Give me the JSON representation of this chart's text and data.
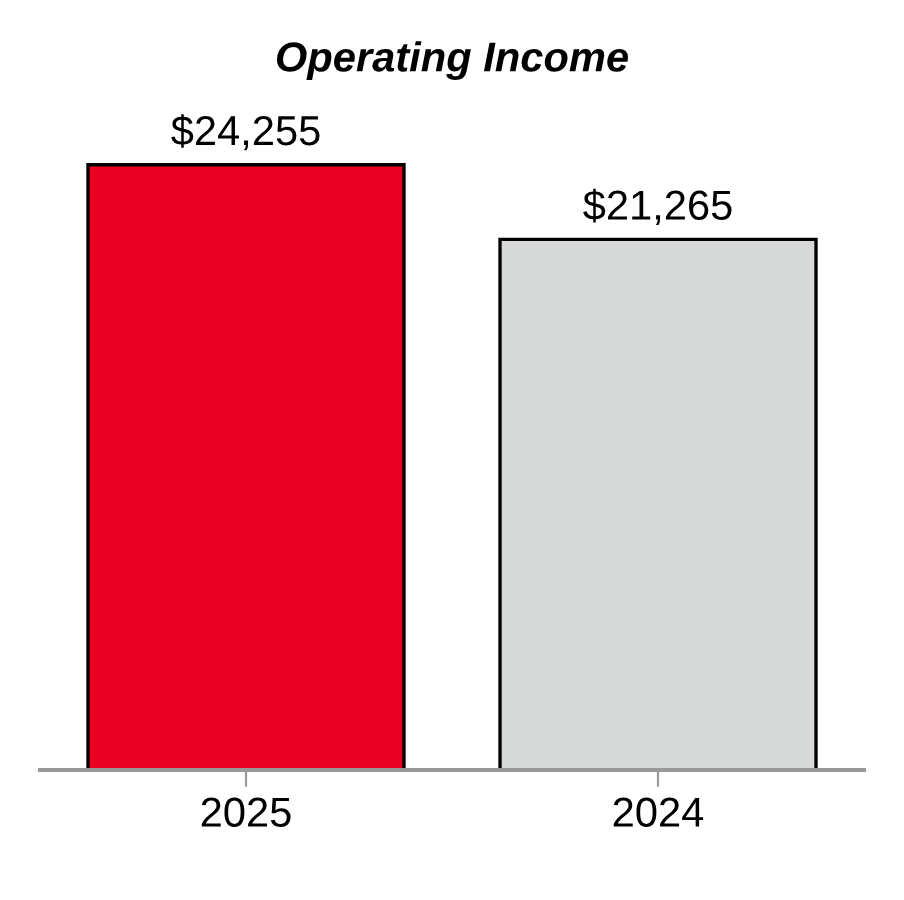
{
  "chart_data": {
    "type": "bar",
    "title": "Operating Income",
    "categories": [
      "2025",
      "2024"
    ],
    "values": [
      24255,
      21265
    ],
    "value_labels": [
      "$24,255",
      "$21,265"
    ],
    "colors": [
      "#ec0021",
      "#d7d9d8"
    ],
    "tick_labels": "x",
    "grid": false,
    "legend": false
  }
}
